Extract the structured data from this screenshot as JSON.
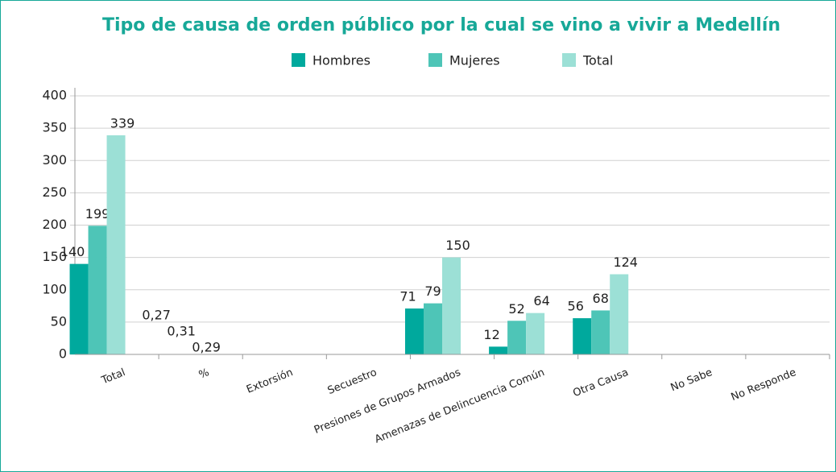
{
  "chart_data": {
    "type": "bar",
    "title": "Tipo de causa de orden público por la cual se vino a vivir a Medellín",
    "categories": [
      "Total",
      "%",
      "Extorsión",
      "Secuestro",
      "Presiones de Grupos Armados",
      "Amenazas de Delincuencia Común",
      "Otra Causa",
      "No Sabe",
      "No Responde"
    ],
    "series": [
      {
        "name": "Hombres",
        "color": "#00a99d",
        "values": [
          140,
          0.27,
          null,
          null,
          71,
          12,
          56,
          null,
          null
        ],
        "value_labels": [
          null,
          "0,27",
          null,
          null,
          null,
          null,
          null,
          null,
          null
        ]
      },
      {
        "name": "Mujeres",
        "color": "#4ec5b7",
        "values": [
          199,
          0.31,
          null,
          null,
          79,
          52,
          68,
          null,
          null
        ],
        "value_labels": [
          null,
          "0,31",
          null,
          null,
          null,
          null,
          null,
          null,
          null
        ]
      },
      {
        "name": "Total",
        "color": "#9ce0d6",
        "values": [
          339,
          0.29,
          null,
          null,
          150,
          64,
          124,
          null,
          null
        ],
        "value_labels": [
          null,
          "0,29",
          null,
          null,
          null,
          null,
          null,
          null,
          null
        ]
      }
    ],
    "ylim": [
      0,
      400
    ],
    "yticks": [
      0,
      50,
      100,
      150,
      200,
      250,
      300,
      350,
      400
    ],
    "grid": true
  }
}
